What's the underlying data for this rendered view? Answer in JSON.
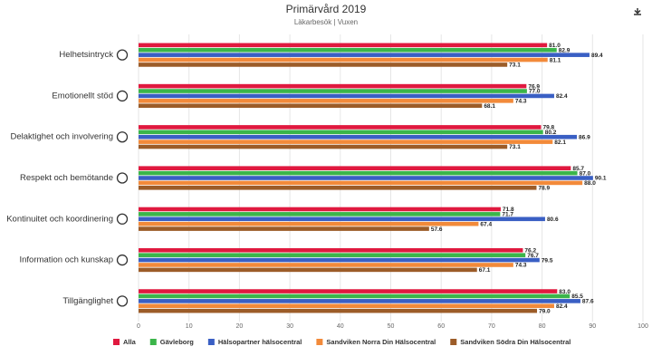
{
  "chart_data": {
    "type": "hbar",
    "title": "Primärvård 2019",
    "subtitle": "Läkarbesök | Vuxen",
    "categories": [
      "Helhetsintryck",
      "Emotionellt stöd",
      "Delaktighet och involvering",
      "Respekt och bemötande",
      "Kontinuitet och koordinering",
      "Information och kunskap",
      "Tillgänglighet"
    ],
    "series": [
      {
        "name": "Alla",
        "color": "#e0193f",
        "values": [
          81.0,
          76.9,
          79.8,
          85.7,
          71.8,
          76.2,
          83.0
        ],
        "value_labels": [
          "81.0",
          "76.9",
          "79.8",
          "85.7",
          "71.8",
          "76.2",
          "83.0"
        ]
      },
      {
        "name": "Gävleborg",
        "color": "#3bb54a",
        "values": [
          82.9,
          77.0,
          80.2,
          87.0,
          71.7,
          76.7,
          85.5
        ],
        "value_labels": [
          "82.9",
          "77.0",
          "80.2",
          "87.0",
          "71.7",
          "76.7",
          "85.5"
        ]
      },
      {
        "name": "Hälsopartner hälsocentral",
        "color": "#3a5fc4",
        "values": [
          89.4,
          82.4,
          86.9,
          90.1,
          80.6,
          79.5,
          87.6
        ],
        "value_labels": [
          "89.4",
          "82.4",
          "86.9",
          "90.1",
          "80.6",
          "79.5",
          "87.6"
        ]
      },
      {
        "name": "Sandviken Norra Din Hälsocentral",
        "color": "#f28a3a",
        "values": [
          81.1,
          74.3,
          82.1,
          88.0,
          67.4,
          74.3,
          82.4
        ],
        "value_labels": [
          "81.1",
          "74.3",
          "82.1",
          "88.0",
          "67.4",
          "74.3",
          "82.4"
        ]
      },
      {
        "name": "Sandviken Södra Din Hälsocentral",
        "color": "#9c5c28",
        "values": [
          73.1,
          68.1,
          73.1,
          78.9,
          57.6,
          67.1,
          79.0
        ],
        "value_labels": [
          "73.1",
          "68.1",
          "73.1",
          "78.9",
          "57.6",
          "67.1",
          "79.0"
        ]
      }
    ],
    "xlim": [
      0,
      100
    ],
    "xticks": [
      0,
      10,
      20,
      30,
      40,
      50,
      60,
      70,
      80,
      90,
      100
    ],
    "grid": true
  }
}
